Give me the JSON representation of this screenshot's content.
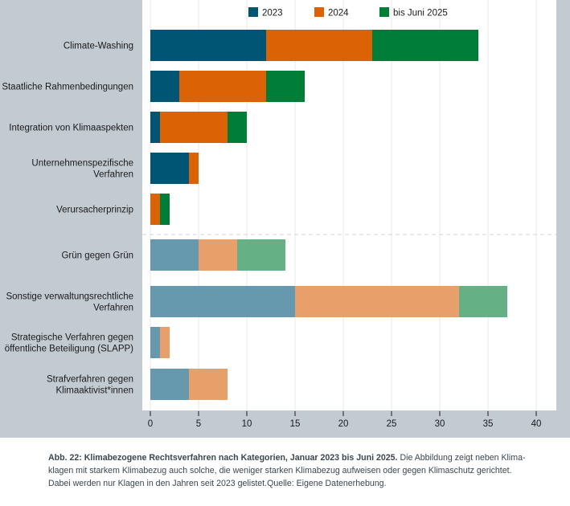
{
  "chart_data": {
    "type": "bar",
    "orientation": "horizontal",
    "stacked": true,
    "title": "",
    "xlabel": "",
    "ylabel": "",
    "xlim": [
      0,
      40
    ],
    "xticks": [
      0,
      5,
      10,
      15,
      20,
      25,
      30,
      35,
      40
    ],
    "grid": "vertical",
    "legend_position": "top-center",
    "categories": [
      {
        "label": [
          "Climate-Washing"
        ],
        "group": "strong"
      },
      {
        "label": [
          "Staatliche Rahmenbedingungen"
        ],
        "group": "strong"
      },
      {
        "label": [
          "Integration von Klimaaspekten"
        ],
        "group": "strong"
      },
      {
        "label": [
          "Unternehmenspezifische",
          "Verfahren"
        ],
        "group": "strong"
      },
      {
        "label": [
          "Verursacherprinzip"
        ],
        "group": "strong"
      },
      {
        "label": [
          "Grün gegen Grün"
        ],
        "group": "weak"
      },
      {
        "label": [
          "Sonstige verwaltungsrechtliche",
          "Verfahren"
        ],
        "group": "weak"
      },
      {
        "label": [
          "Strategische Verfahren gegen",
          "öffentliche Beteiligung (SLAPP)"
        ],
        "group": "weak"
      },
      {
        "label": [
          "Strafverfahren gegen",
          "Klimaaktivist*innen"
        ],
        "group": "weak"
      }
    ],
    "series": [
      {
        "name": "2023",
        "color": "#005474",
        "light_color": "#6699ad",
        "values": [
          12,
          3,
          1,
          4,
          0,
          5,
          15,
          1,
          4
        ]
      },
      {
        "name": "2024",
        "color": "#db6205",
        "light_color": "#e8a06a",
        "values": [
          11,
          9,
          7,
          1,
          1,
          4,
          17,
          1,
          4
        ]
      },
      {
        "name": "bis Juni 2025",
        "color": "#007d36",
        "light_color": "#66b086",
        "values": [
          11,
          4,
          2,
          0,
          1,
          5,
          5,
          0,
          0
        ]
      }
    ],
    "separator": "dashed line between strong and weak climate-related groups"
  },
  "caption": {
    "bold": "Abb. 22: Klimabezogene Rechtsverfahren nach Kategorien, Januar 2023 bis Juni 2025.",
    "text": " Die Abbildung zeigt neben Klima-klagen mit starkem Klimabezug auch solche, die weniger starken Klimabezug aufweisen oder gegen Klimaschutz gerichtet. Dabei werden nur Klagen in den Jahren seit 2023 gelistet.Quelle: Eigene Datenerhebung."
  }
}
